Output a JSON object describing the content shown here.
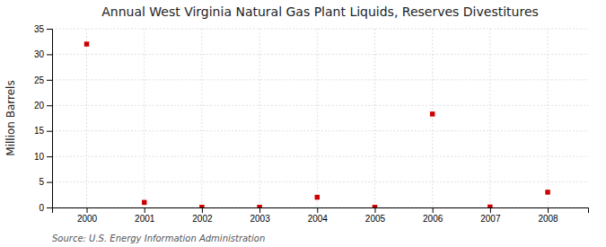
{
  "chart_data": {
    "type": "scatter",
    "title": "Annual West Virginia Natural Gas Plant Liquids, Reserves Divestitures",
    "ylabel": "Million Barrels",
    "annotations": [
      "Source: U.S. Energy Information Administration"
    ],
    "x": [
      2000,
      2001,
      2002,
      2003,
      2004,
      2005,
      2006,
      2007,
      2008
    ],
    "values": [
      32.0,
      1.0,
      0.05,
      0.05,
      2.0,
      0.05,
      18.3,
      0.1,
      3.0
    ],
    "color": "#cc0000",
    "marker": "square",
    "grid": true,
    "xlim": [
      1999.4,
      2008.7
    ],
    "ylim": [
      0,
      35
    ],
    "xticks": [
      2000,
      2001,
      2002,
      2003,
      2004,
      2005,
      2006,
      2007,
      2008
    ],
    "yticks": [
      0,
      5,
      10,
      15,
      20,
      25,
      30,
      35
    ]
  }
}
